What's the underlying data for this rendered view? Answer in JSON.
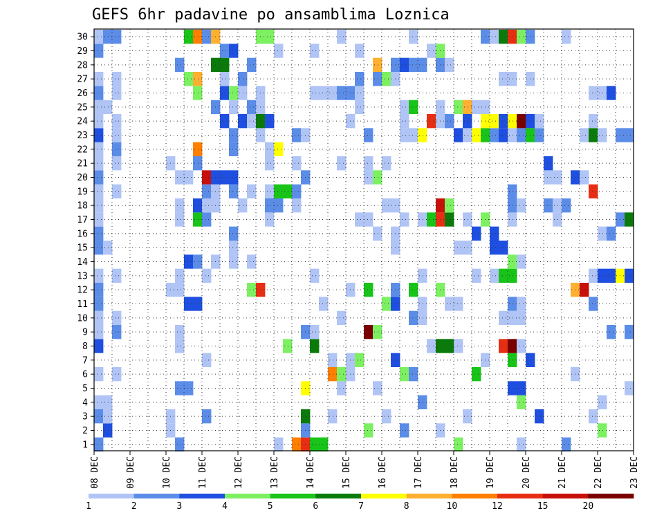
{
  "chart_data": {
    "type": "heatmap",
    "title": "GEFS 6hr padavine po ansamblima Loznica",
    "xlabel": "",
    "ylabel": "",
    "x_ticks": [
      "08 DEC",
      "09 DEC",
      "10 DEC",
      "11 DEC",
      "12 DEC",
      "13 DEC",
      "14 DEC",
      "15 DEC",
      "16 DEC",
      "17 DEC",
      "18 DEC",
      "19 DEC",
      "20 DEC",
      "21 DEC",
      "22 DEC",
      "23 DEC"
    ],
    "y_ticks": [
      "1",
      "2",
      "3",
      "4",
      "5",
      "6",
      "7",
      "8",
      "9",
      "10",
      "11",
      "12",
      "13",
      "14",
      "15",
      "16",
      "17",
      "18",
      "19",
      "20",
      "21",
      "22",
      "23",
      "24",
      "25",
      "26",
      "27",
      "28",
      "29",
      "30"
    ],
    "y_range": [
      1,
      30
    ],
    "grid": true,
    "colorbar": {
      "labels": [
        "1",
        "2",
        "3",
        "4",
        "5",
        "6",
        "7",
        "8",
        "10",
        "12",
        "15",
        "20"
      ],
      "colors": [
        "#b0c4f5",
        "#5b8de8",
        "#1f4fe0",
        "#7df062",
        "#18c418",
        "#0a7b0a",
        "#ffff00",
        "#ffb030",
        "#ff7f00",
        "#e82e12",
        "#c8100a",
        "#7a0000"
      ]
    },
    "data_note": "rows = ensemble member 1-30; columns = 6-hour steps from 08 DEC 00Z; value = colour class index (0 = none, 1-12 = colorbar classes)",
    "cells": [
      [
        1,
        0,
        2
      ],
      [
        1,
        9,
        2
      ],
      [
        1,
        20,
        1
      ],
      [
        1,
        22,
        9
      ],
      [
        1,
        23,
        10
      ],
      [
        1,
        24,
        5
      ],
      [
        1,
        25,
        5
      ],
      [
        1,
        40,
        4
      ],
      [
        1,
        47,
        1
      ],
      [
        1,
        52,
        2
      ],
      [
        2,
        1,
        3
      ],
      [
        2,
        8,
        1
      ],
      [
        2,
        23,
        2
      ],
      [
        2,
        30,
        4
      ],
      [
        2,
        34,
        2
      ],
      [
        2,
        38,
        1
      ],
      [
        2,
        56,
        4
      ],
      [
        3,
        0,
        2
      ],
      [
        3,
        1,
        1
      ],
      [
        3,
        8,
        1
      ],
      [
        3,
        12,
        2
      ],
      [
        3,
        23,
        6
      ],
      [
        3,
        26,
        1
      ],
      [
        3,
        32,
        1
      ],
      [
        3,
        41,
        1
      ],
      [
        3,
        49,
        3
      ],
      [
        3,
        55,
        1
      ],
      [
        4,
        0,
        1
      ],
      [
        4,
        1,
        1
      ],
      [
        4,
        36,
        2
      ],
      [
        4,
        47,
        4
      ],
      [
        4,
        56,
        1
      ],
      [
        5,
        9,
        2
      ],
      [
        5,
        10,
        2
      ],
      [
        5,
        23,
        7
      ],
      [
        5,
        27,
        1
      ],
      [
        5,
        31,
        1
      ],
      [
        5,
        46,
        3
      ],
      [
        5,
        47,
        3
      ],
      [
        5,
        59,
        1
      ],
      [
        6,
        0,
        1
      ],
      [
        6,
        2,
        1
      ],
      [
        6,
        26,
        9
      ],
      [
        6,
        27,
        4
      ],
      [
        6,
        28,
        1
      ],
      [
        6,
        34,
        4
      ],
      [
        6,
        35,
        2
      ],
      [
        6,
        42,
        5
      ],
      [
        6,
        53,
        1
      ],
      [
        7,
        12,
        1
      ],
      [
        7,
        26,
        1
      ],
      [
        7,
        28,
        1
      ],
      [
        7,
        29,
        4
      ],
      [
        7,
        33,
        3
      ],
      [
        7,
        43,
        1
      ],
      [
        7,
        46,
        5
      ],
      [
        7,
        48,
        3
      ],
      [
        8,
        0,
        3
      ],
      [
        8,
        9,
        1
      ],
      [
        8,
        21,
        4
      ],
      [
        8,
        24,
        6
      ],
      [
        8,
        37,
        1
      ],
      [
        8,
        38,
        6
      ],
      [
        8,
        39,
        6
      ],
      [
        8,
        40,
        1
      ],
      [
        8,
        45,
        10
      ],
      [
        8,
        46,
        12
      ],
      [
        8,
        47,
        1
      ],
      [
        9,
        0,
        1
      ],
      [
        9,
        2,
        2
      ],
      [
        9,
        9,
        1
      ],
      [
        9,
        23,
        2
      ],
      [
        9,
        24,
        1
      ],
      [
        9,
        30,
        12
      ],
      [
        9,
        31,
        4
      ],
      [
        9,
        57,
        2
      ],
      [
        9,
        59,
        2
      ],
      [
        10,
        0,
        1
      ],
      [
        10,
        2,
        1
      ],
      [
        10,
        27,
        1
      ],
      [
        10,
        35,
        2
      ],
      [
        10,
        36,
        1
      ],
      [
        10,
        45,
        1
      ],
      [
        10,
        46,
        1
      ],
      [
        10,
        47,
        1
      ],
      [
        11,
        0,
        2
      ],
      [
        11,
        10,
        3
      ],
      [
        11,
        11,
        3
      ],
      [
        11,
        25,
        1
      ],
      [
        11,
        32,
        4
      ],
      [
        11,
        33,
        3
      ],
      [
        11,
        36,
        1
      ],
      [
        11,
        39,
        1
      ],
      [
        11,
        40,
        1
      ],
      [
        11,
        46,
        2
      ],
      [
        11,
        47,
        1
      ],
      [
        11,
        55,
        2
      ],
      [
        12,
        0,
        2
      ],
      [
        12,
        8,
        1
      ],
      [
        12,
        9,
        1
      ],
      [
        12,
        17,
        4
      ],
      [
        12,
        18,
        10
      ],
      [
        12,
        28,
        1
      ],
      [
        12,
        30,
        5
      ],
      [
        12,
        33,
        2
      ],
      [
        12,
        35,
        5
      ],
      [
        12,
        38,
        4
      ],
      [
        12,
        53,
        8
      ],
      [
        12,
        54,
        11
      ],
      [
        13,
        0,
        1
      ],
      [
        13,
        2,
        1
      ],
      [
        13,
        9,
        1
      ],
      [
        13,
        12,
        1
      ],
      [
        13,
        24,
        1
      ],
      [
        13,
        36,
        1
      ],
      [
        13,
        42,
        1
      ],
      [
        13,
        44,
        1
      ],
      [
        13,
        45,
        5
      ],
      [
        13,
        46,
        5
      ],
      [
        13,
        55,
        1
      ],
      [
        13,
        56,
        3
      ],
      [
        13,
        57,
        3
      ],
      [
        13,
        58,
        7
      ],
      [
        13,
        59,
        3
      ],
      [
        14,
        10,
        3
      ],
      [
        14,
        11,
        2
      ],
      [
        14,
        13,
        1
      ],
      [
        14,
        15,
        1
      ],
      [
        14,
        17,
        1
      ],
      [
        14,
        46,
        4
      ],
      [
        14,
        47,
        1
      ],
      [
        15,
        0,
        2
      ],
      [
        15,
        1,
        1
      ],
      [
        15,
        15,
        1
      ],
      [
        15,
        33,
        1
      ],
      [
        15,
        40,
        1
      ],
      [
        15,
        41,
        1
      ],
      [
        15,
        44,
        3
      ],
      [
        15,
        45,
        3
      ],
      [
        16,
        0,
        2
      ],
      [
        16,
        15,
        2
      ],
      [
        16,
        31,
        1
      ],
      [
        16,
        33,
        1
      ],
      [
        16,
        42,
        3
      ],
      [
        16,
        44,
        3
      ],
      [
        16,
        56,
        1
      ],
      [
        16,
        57,
        2
      ],
      [
        17,
        0,
        1
      ],
      [
        17,
        9,
        1
      ],
      [
        17,
        11,
        5
      ],
      [
        17,
        12,
        2
      ],
      [
        17,
        19,
        1
      ],
      [
        17,
        29,
        1
      ],
      [
        17,
        30,
        1
      ],
      [
        17,
        34,
        1
      ],
      [
        17,
        36,
        1
      ],
      [
        17,
        37,
        5
      ],
      [
        17,
        38,
        10
      ],
      [
        17,
        39,
        6
      ],
      [
        17,
        41,
        1
      ],
      [
        17,
        43,
        4
      ],
      [
        17,
        46,
        1
      ],
      [
        17,
        51,
        1
      ],
      [
        17,
        58,
        2
      ],
      [
        17,
        59,
        6
      ],
      [
        18,
        0,
        1
      ],
      [
        18,
        9,
        1
      ],
      [
        18,
        11,
        3
      ],
      [
        18,
        12,
        1
      ],
      [
        18,
        13,
        1
      ],
      [
        18,
        16,
        1
      ],
      [
        18,
        19,
        2
      ],
      [
        18,
        20,
        2
      ],
      [
        18,
        22,
        1
      ],
      [
        18,
        32,
        1
      ],
      [
        18,
        33,
        1
      ],
      [
        18,
        38,
        11
      ],
      [
        18,
        39,
        4
      ],
      [
        18,
        46,
        2
      ],
      [
        18,
        47,
        1
      ],
      [
        18,
        50,
        2
      ],
      [
        18,
        51,
        1
      ],
      [
        18,
        52,
        2
      ],
      [
        19,
        0,
        1
      ],
      [
        19,
        2,
        1
      ],
      [
        19,
        12,
        2
      ],
      [
        19,
        13,
        1
      ],
      [
        19,
        15,
        2
      ],
      [
        19,
        17,
        1
      ],
      [
        19,
        19,
        1
      ],
      [
        19,
        20,
        5
      ],
      [
        19,
        21,
        5
      ],
      [
        19,
        22,
        2
      ],
      [
        19,
        46,
        2
      ],
      [
        19,
        55,
        10
      ],
      [
        20,
        0,
        2
      ],
      [
        20,
        9,
        1
      ],
      [
        20,
        10,
        1
      ],
      [
        20,
        12,
        11
      ],
      [
        20,
        13,
        3
      ],
      [
        20,
        14,
        3
      ],
      [
        20,
        15,
        3
      ],
      [
        20,
        23,
        2
      ],
      [
        20,
        30,
        1
      ],
      [
        20,
        31,
        4
      ],
      [
        20,
        50,
        1
      ],
      [
        20,
        51,
        1
      ],
      [
        20,
        53,
        3
      ],
      [
        20,
        54,
        1
      ],
      [
        21,
        0,
        1
      ],
      [
        21,
        2,
        1
      ],
      [
        21,
        8,
        1
      ],
      [
        21,
        11,
        2
      ],
      [
        21,
        19,
        1
      ],
      [
        21,
        22,
        1
      ],
      [
        21,
        27,
        1
      ],
      [
        21,
        30,
        1
      ],
      [
        21,
        32,
        1
      ],
      [
        21,
        50,
        3
      ],
      [
        22,
        0,
        1
      ],
      [
        22,
        2,
        2
      ],
      [
        22,
        11,
        9
      ],
      [
        22,
        15,
        2
      ],
      [
        22,
        19,
        1
      ],
      [
        22,
        20,
        7
      ],
      [
        23,
        0,
        3
      ],
      [
        23,
        2,
        1
      ],
      [
        23,
        15,
        2
      ],
      [
        23,
        18,
        1
      ],
      [
        23,
        22,
        2
      ],
      [
        23,
        23,
        1
      ],
      [
        23,
        30,
        2
      ],
      [
        23,
        34,
        1
      ],
      [
        23,
        35,
        1
      ],
      [
        23,
        36,
        7
      ],
      [
        23,
        40,
        3
      ],
      [
        23,
        41,
        1
      ],
      [
        23,
        42,
        7
      ],
      [
        23,
        43,
        5
      ],
      [
        23,
        44,
        2
      ],
      [
        23,
        45,
        3
      ],
      [
        23,
        46,
        1
      ],
      [
        23,
        47,
        2
      ],
      [
        23,
        48,
        5
      ],
      [
        23,
        49,
        2
      ],
      [
        23,
        54,
        1
      ],
      [
        23,
        55,
        6
      ],
      [
        23,
        56,
        1
      ],
      [
        23,
        58,
        2
      ],
      [
        23,
        59,
        2
      ],
      [
        24,
        0,
        1
      ],
      [
        24,
        2,
        1
      ],
      [
        24,
        14,
        3
      ],
      [
        24,
        16,
        3
      ],
      [
        24,
        17,
        1
      ],
      [
        24,
        18,
        6
      ],
      [
        24,
        19,
        3
      ],
      [
        24,
        28,
        1
      ],
      [
        24,
        34,
        1
      ],
      [
        24,
        37,
        10
      ],
      [
        24,
        38,
        1
      ],
      [
        24,
        39,
        2
      ],
      [
        24,
        41,
        3
      ],
      [
        24,
        43,
        7
      ],
      [
        24,
        44,
        7
      ],
      [
        24,
        45,
        3
      ],
      [
        24,
        46,
        7
      ],
      [
        24,
        47,
        12
      ],
      [
        24,
        48,
        3
      ],
      [
        24,
        49,
        1
      ],
      [
        24,
        55,
        1
      ],
      [
        25,
        0,
        1
      ],
      [
        25,
        1,
        1
      ],
      [
        25,
        13,
        2
      ],
      [
        25,
        15,
        1
      ],
      [
        25,
        17,
        2
      ],
      [
        25,
        18,
        1
      ],
      [
        25,
        29,
        1
      ],
      [
        25,
        34,
        1
      ],
      [
        25,
        35,
        5
      ],
      [
        25,
        38,
        1
      ],
      [
        25,
        40,
        4
      ],
      [
        25,
        41,
        8
      ],
      [
        25,
        42,
        1
      ],
      [
        25,
        43,
        1
      ],
      [
        26,
        0,
        2
      ],
      [
        26,
        2,
        1
      ],
      [
        26,
        11,
        4
      ],
      [
        26,
        14,
        3
      ],
      [
        26,
        15,
        4
      ],
      [
        26,
        16,
        1
      ],
      [
        26,
        18,
        1
      ],
      [
        26,
        24,
        1
      ],
      [
        26,
        25,
        1
      ],
      [
        26,
        26,
        1
      ],
      [
        26,
        27,
        2
      ],
      [
        26,
        28,
        2
      ],
      [
        26,
        29,
        1
      ],
      [
        26,
        55,
        1
      ],
      [
        26,
        56,
        1
      ],
      [
        26,
        57,
        3
      ],
      [
        27,
        0,
        1
      ],
      [
        27,
        2,
        1
      ],
      [
        27,
        10,
        4
      ],
      [
        27,
        11,
        8
      ],
      [
        27,
        14,
        1
      ],
      [
        27,
        16,
        2
      ],
      [
        27,
        29,
        2
      ],
      [
        27,
        31,
        2
      ],
      [
        27,
        32,
        4
      ],
      [
        27,
        33,
        1
      ],
      [
        27,
        45,
        1
      ],
      [
        27,
        46,
        1
      ],
      [
        27,
        48,
        1
      ],
      [
        28,
        9,
        2
      ],
      [
        28,
        13,
        6
      ],
      [
        28,
        14,
        6
      ],
      [
        28,
        17,
        2
      ],
      [
        28,
        31,
        8
      ],
      [
        28,
        33,
        2
      ],
      [
        28,
        34,
        3
      ],
      [
        28,
        35,
        2
      ],
      [
        28,
        36,
        2
      ],
      [
        28,
        38,
        2
      ],
      [
        28,
        39,
        1
      ],
      [
        29,
        0,
        2
      ],
      [
        29,
        14,
        2
      ],
      [
        29,
        15,
        3
      ],
      [
        29,
        20,
        1
      ],
      [
        29,
        24,
        1
      ],
      [
        29,
        29,
        1
      ],
      [
        29,
        37,
        1
      ],
      [
        29,
        38,
        4
      ],
      [
        30,
        0,
        1
      ],
      [
        30,
        1,
        2
      ],
      [
        30,
        2,
        2
      ],
      [
        30,
        10,
        5
      ],
      [
        30,
        11,
        9
      ],
      [
        30,
        12,
        2
      ],
      [
        30,
        13,
        8
      ],
      [
        30,
        18,
        4
      ],
      [
        30,
        19,
        4
      ],
      [
        30,
        27,
        1
      ],
      [
        30,
        35,
        1
      ],
      [
        30,
        43,
        2
      ],
      [
        30,
        44,
        1
      ],
      [
        30,
        45,
        6
      ],
      [
        30,
        46,
        10
      ],
      [
        30,
        47,
        4
      ],
      [
        30,
        48,
        2
      ],
      [
        30,
        52,
        1
      ]
    ]
  }
}
